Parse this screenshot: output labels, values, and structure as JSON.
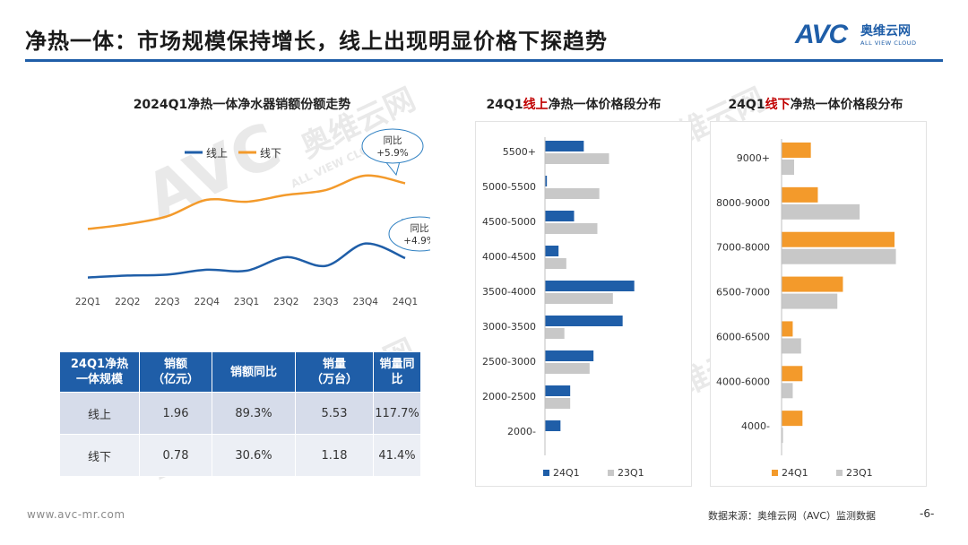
{
  "header": {
    "title": "净热一体：市场规模保持增长，线上出现明显价格下探趋势"
  },
  "logo": {
    "brand": "AVC",
    "name_cn": "奥维云网",
    "name_en": "ALL VIEW CLOUD"
  },
  "watermark": {
    "brand": "AVC",
    "name_cn": "奥维云网",
    "name_en": "ALL VIEW CLOUD"
  },
  "colors": {
    "blue": "#1f5ea8",
    "orange": "#f39a2b",
    "gray": "#c8c8c8",
    "red": "#c00000"
  },
  "chart_data": [
    {
      "type": "line",
      "title": "2024Q1净热一体净水器销额份额走势",
      "categories": [
        "22Q1",
        "22Q2",
        "22Q3",
        "22Q4",
        "23Q1",
        "23Q2",
        "23Q3",
        "23Q4",
        "24Q1"
      ],
      "series": [
        {
          "name": "线上",
          "color": "#1f5ea8",
          "values": [
            5,
            7,
            8,
            13,
            12,
            26,
            17,
            40,
            25
          ]
        },
        {
          "name": "线下",
          "color": "#f39a2b",
          "values": [
            55,
            60,
            68,
            85,
            83,
            90,
            95,
            110,
            102
          ]
        }
      ],
      "ylim": [
        0,
        120
      ],
      "yaxis_labels_shown": false,
      "legend": "top",
      "annotations": [
        {
          "series": "线下",
          "text_line1": "同比",
          "text_line2": "+5.9%"
        },
        {
          "series": "线上",
          "text_line1": "同比",
          "text_line2": "+4.9%"
        }
      ]
    },
    {
      "type": "bar",
      "orientation": "horizontal",
      "title_prefix": "24Q1",
      "title_emph": "线上",
      "title_suffix": "净热一体价格段分布",
      "categories": [
        "5500+",
        "5000-5500",
        "4500-5000",
        "4000-4500",
        "3500-4000",
        "3000-3500",
        "2500-3000",
        "2000-2500",
        "2000-"
      ],
      "series": [
        {
          "name": "24Q1",
          "color": "#1f5ea8",
          "values": [
            10,
            0.5,
            7.5,
            3.5,
            23,
            20,
            12.5,
            6.5,
            4
          ]
        },
        {
          "name": "23Q1",
          "color": "#c8c8c8",
          "values": [
            16.5,
            14,
            13.5,
            5.5,
            17.5,
            5,
            11.5,
            6.5,
            0
          ]
        }
      ],
      "xlim": [
        0,
        30
      ],
      "legend": "bottom"
    },
    {
      "type": "bar",
      "orientation": "horizontal",
      "title_prefix": "24Q1",
      "title_emph": "线下",
      "title_suffix": "净热一体价格段分布",
      "categories": [
        "9000+",
        "8000-9000",
        "7000-8000",
        "6500-7000",
        "6000-6500",
        "4000-6000",
        "4000-"
      ],
      "series": [
        {
          "name": "24Q1",
          "color": "#f39a2b",
          "values": [
            10.5,
            13,
            40.5,
            22,
            4,
            7.5,
            7.5
          ]
        },
        {
          "name": "23Q1",
          "color": "#c8c8c8",
          "values": [
            4.5,
            28,
            41,
            20,
            7,
            4,
            0.5
          ]
        }
      ],
      "xlim": [
        0,
        45
      ],
      "legend": "bottom"
    }
  ],
  "scale_table": {
    "headers": [
      "24Q1净热\n一体规模",
      "销额\n（亿元）",
      "销额同比",
      "销量\n（万台）",
      "销量同比"
    ],
    "rows": [
      [
        "线上",
        "1.96",
        "89.3%",
        "5.53",
        "117.7%"
      ],
      [
        "线下",
        "0.78",
        "30.6%",
        "1.18",
        "41.4%"
      ]
    ]
  },
  "footer": {
    "website": "www.avc-mr.com",
    "source": "数据来源：奥维云网（AVC）监测数据",
    "page": "-6-"
  }
}
